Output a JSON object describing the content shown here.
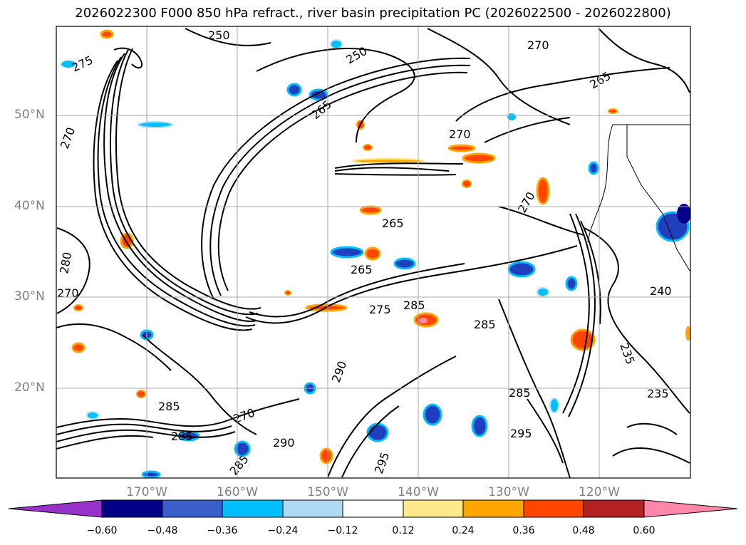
{
  "title": "2026022300 F000 850 hPa refract., river basin precipitation PC (2026022500 - 2026022800)",
  "map": {
    "lat_labels": [
      "50°N",
      "40°N",
      "30°N",
      "20°N"
    ],
    "lon_labels": [
      "170°W",
      "160°W",
      "150°W",
      "140°W",
      "130°W",
      "120°W"
    ],
    "contour_labels": [
      "250",
      "275",
      "250",
      "270",
      "265",
      "270",
      "265",
      "270",
      "265",
      "270",
      "265",
      "285",
      "290",
      "270",
      "285",
      "285",
      "290",
      "295",
      "285",
      "295",
      "285",
      "240",
      "235",
      "235",
      "280",
      "275",
      "285",
      "270"
    ],
    "shading_colors": {
      "strong_negative": "#1f3fbf",
      "negative": "#00bfff",
      "weak_negative": "#aee0ff",
      "weak_positive": "#ffe680",
      "positive": "#ffa500",
      "strong_positive": "#ff4500"
    }
  },
  "colorbar": {
    "tick_labels": [
      "−0.60",
      "−0.48",
      "−0.36",
      "−0.24",
      "−0.12",
      "0.12",
      "0.24",
      "0.36",
      "0.48",
      "0.60"
    ],
    "colors": [
      "#9932cc",
      "#00008b",
      "#3a5fcd",
      "#00bfff",
      "#add8f6",
      "#ffffff",
      "#ffe98a",
      "#ffa500",
      "#ff4500",
      "#b22222",
      "#ff88aa"
    ]
  }
}
